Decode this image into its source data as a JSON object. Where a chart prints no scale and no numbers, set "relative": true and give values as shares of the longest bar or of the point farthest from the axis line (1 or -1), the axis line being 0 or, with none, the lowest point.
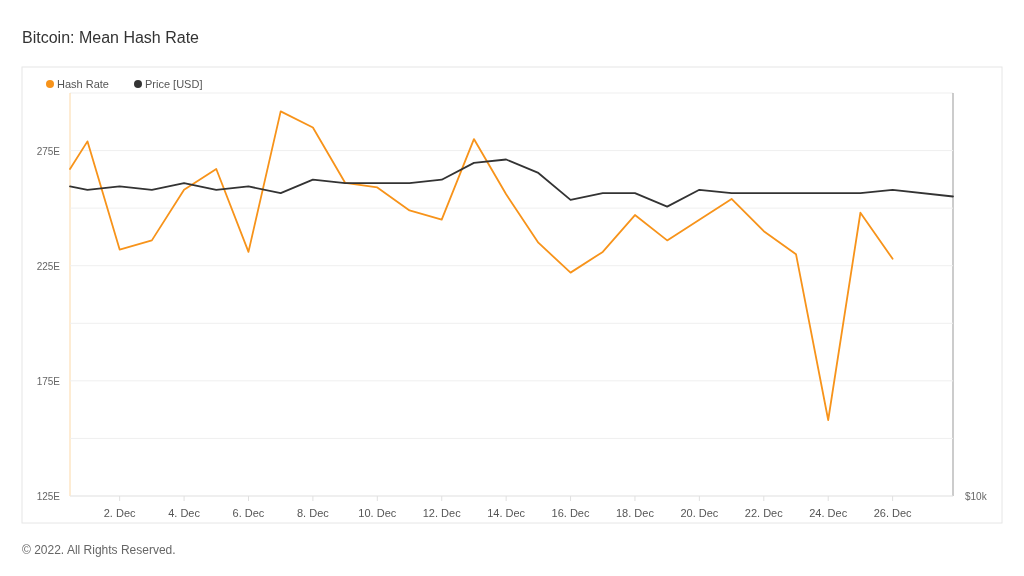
{
  "chart_data": [
    {
      "type": "line",
      "title": "Bitcoin: Mean Hash Rate",
      "annotations": [
        "© 2022. All Rights Reserved."
      ],
      "xlim": [
        "2022-11-30T11:00",
        "2022-12-27T21:00"
      ],
      "xticks": [
        {
          "value": "2022-12-02",
          "label": "2. Dec"
        },
        {
          "value": "2022-12-04",
          "label": "4. Dec"
        },
        {
          "value": "2022-12-06",
          "label": "6. Dec"
        },
        {
          "value": "2022-12-08",
          "label": "8. Dec"
        },
        {
          "value": "2022-12-10",
          "label": "10. Dec"
        },
        {
          "value": "2022-12-12",
          "label": "12. Dec"
        },
        {
          "value": "2022-12-14",
          "label": "14. Dec"
        },
        {
          "value": "2022-12-16",
          "label": "16. Dec"
        },
        {
          "value": "2022-12-18",
          "label": "18. Dec"
        },
        {
          "value": "2022-12-20",
          "label": "20. Dec"
        },
        {
          "value": "2022-12-22",
          "label": "22. Dec"
        },
        {
          "value": "2022-12-24",
          "label": "24. Dec"
        },
        {
          "value": "2022-12-26",
          "label": "26. Dec"
        }
      ],
      "ylim": [
        125,
        300
      ],
      "yticks": [
        {
          "value": 125,
          "label": "125E"
        },
        {
          "value": 150,
          "label": null
        },
        {
          "value": 175,
          "label": "175E"
        },
        {
          "value": 200,
          "label": null
        },
        {
          "value": 225,
          "label": "225E"
        },
        {
          "value": 250,
          "label": null
        },
        {
          "value": 275,
          "label": "275E"
        }
      ],
      "grid": "y",
      "legend": "top left",
      "marker": "none",
      "line_style": "solid",
      "series": [
        {
          "name": "Hash Rate",
          "color": "#f7931a",
          "x": [
            "2022-11-30T11:00",
            "2022-12-01",
            "2022-12-02",
            "2022-12-03",
            "2022-12-04",
            "2022-12-05",
            "2022-12-06",
            "2022-12-07",
            "2022-12-08",
            "2022-12-09",
            "2022-12-10",
            "2022-12-11",
            "2022-12-12",
            "2022-12-13",
            "2022-12-14",
            "2022-12-15",
            "2022-12-16",
            "2022-12-17",
            "2022-12-18",
            "2022-12-19",
            "2022-12-20",
            "2022-12-21",
            "2022-12-22",
            "2022-12-23",
            "2022-12-24",
            "2022-12-25",
            "2022-12-26"
          ],
          "values": [
            267,
            279,
            232,
            236,
            258,
            267,
            231,
            292,
            285,
            261,
            259,
            249,
            245,
            280,
            256,
            235,
            222,
            231,
            247,
            236,
            245,
            254,
            240,
            230,
            158,
            248,
            228
          ]
        }
      ]
    },
    {
      "type": "line",
      "relative": true,
      "annotations": [
        "$10k"
      ],
      "xlim": [
        "2022-11-30T11:00",
        "2022-12-27T21:00"
      ],
      "legend": "top left",
      "marker": "none",
      "line_style": "solid",
      "series": [
        {
          "name": "Price [USD]",
          "color": "#333333",
          "x": [
            "2022-11-30T11:00",
            "2022-12-01",
            "2022-12-02",
            "2022-12-03",
            "2022-12-04",
            "2022-12-05",
            "2022-12-06",
            "2022-12-07",
            "2022-12-08",
            "2022-12-09",
            "2022-12-10",
            "2022-12-11",
            "2022-12-12",
            "2022-12-13",
            "2022-12-14",
            "2022-12-15",
            "2022-12-16",
            "2022-12-17",
            "2022-12-18",
            "2022-12-19",
            "2022-12-20",
            "2022-12-21",
            "2022-12-22",
            "2022-12-23",
            "2022-12-24",
            "2022-12-25",
            "2022-12-26",
            "2022-12-27T21:00"
          ],
          "values": [
            0.92,
            0.91,
            0.92,
            0.91,
            0.93,
            0.91,
            0.92,
            0.9,
            0.94,
            0.93,
            0.93,
            0.93,
            0.94,
            0.99,
            1,
            0.96,
            0.88,
            0.9,
            0.9,
            0.86,
            0.91,
            0.9,
            0.9,
            0.9,
            0.9,
            0.9,
            0.91,
            0.89
          ]
        }
      ]
    }
  ]
}
